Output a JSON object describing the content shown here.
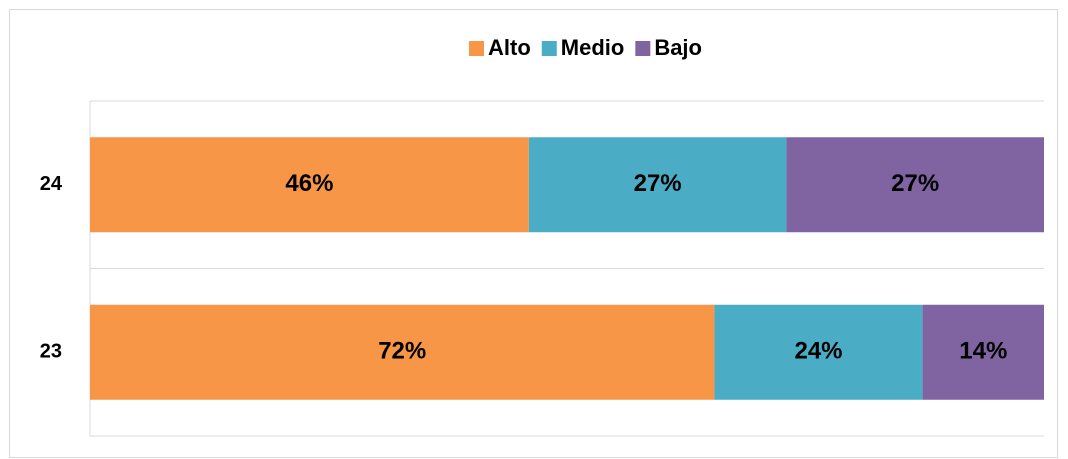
{
  "chart_data": {
    "type": "bar",
    "orientation": "horizontal",
    "stack": "percent",
    "categories": [
      "24",
      "23"
    ],
    "series": [
      {
        "name": "Alto",
        "color": "#f79646",
        "values": [
          46,
          72
        ],
        "value_labels": [
          "46%",
          "72%"
        ]
      },
      {
        "name": "Medio",
        "color": "#4bacc6",
        "values": [
          27,
          24
        ],
        "value_labels": [
          "27%",
          "24%"
        ]
      },
      {
        "name": "Bajo",
        "color": "#8064a2",
        "values": [
          27,
          14
        ],
        "value_labels": [
          "27%",
          "14%"
        ]
      }
    ],
    "legend": "top",
    "grid": true
  }
}
